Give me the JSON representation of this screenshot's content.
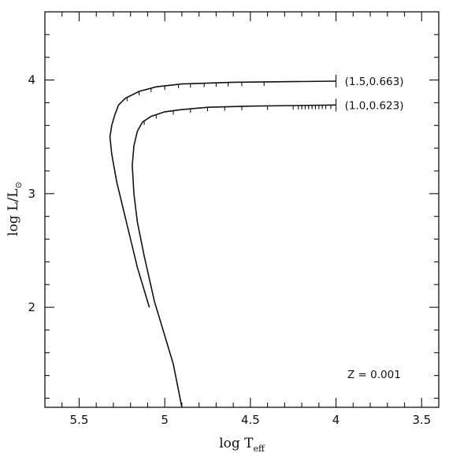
{
  "chart_data": {
    "type": "line",
    "title": "",
    "xlabel": {
      "main": "log T",
      "sub": "eff"
    },
    "ylabel": {
      "main": "log L/L",
      "sub": "⊙"
    },
    "xlim": [
      5.7,
      3.4
    ],
    "ylim": [
      1.12,
      4.6
    ],
    "x_reversed": true,
    "x_ticks": [
      5.5,
      5,
      4.5,
      4,
      3.5
    ],
    "x_tick_labels": [
      "5.5",
      "5",
      "4.5",
      "4",
      "3.5"
    ],
    "y_ticks": [
      2,
      3,
      4
    ],
    "y_tick_labels": [
      "2",
      "3",
      "4"
    ],
    "annotation": "Z = 0.001",
    "series": [
      {
        "name": "(1.5,0.663)",
        "points": [
          [
            4.0,
            3.99
          ],
          [
            4.3,
            3.985
          ],
          [
            4.6,
            3.98
          ],
          [
            4.9,
            3.965
          ],
          [
            5.05,
            3.94
          ],
          [
            5.15,
            3.9
          ],
          [
            5.23,
            3.84
          ],
          [
            5.27,
            3.78
          ],
          [
            5.29,
            3.7
          ],
          [
            5.31,
            3.6
          ],
          [
            5.32,
            3.5
          ],
          [
            5.31,
            3.35
          ],
          [
            5.28,
            3.1
          ],
          [
            5.24,
            2.85
          ],
          [
            5.2,
            2.6
          ],
          [
            5.16,
            2.35
          ],
          [
            5.12,
            2.15
          ],
          [
            5.09,
            2.0
          ]
        ],
        "markers_x": [
          4.42,
          4.55,
          4.63,
          4.7,
          4.77,
          4.85,
          4.92,
          5.0,
          5.08,
          5.15,
          5.22
        ]
      },
      {
        "name": "(1.0,0.623)",
        "points": [
          [
            4.0,
            3.78
          ],
          [
            4.25,
            3.775
          ],
          [
            4.5,
            3.77
          ],
          [
            4.75,
            3.76
          ],
          [
            4.9,
            3.74
          ],
          [
            5.0,
            3.72
          ],
          [
            5.08,
            3.68
          ],
          [
            5.13,
            3.63
          ],
          [
            5.16,
            3.55
          ],
          [
            5.18,
            3.42
          ],
          [
            5.19,
            3.25
          ],
          [
            5.18,
            3.0
          ],
          [
            5.16,
            2.75
          ],
          [
            5.12,
            2.45
          ],
          [
            5.09,
            2.25
          ],
          [
            5.06,
            2.05
          ],
          [
            5.0,
            1.75
          ],
          [
            4.95,
            1.5
          ],
          [
            4.9,
            1.12
          ]
        ],
        "markers_x": [
          4.03,
          4.06,
          4.08,
          4.1,
          4.12,
          4.14,
          4.16,
          4.18,
          4.2,
          4.22,
          4.25,
          4.4,
          4.55,
          4.65,
          4.75,
          4.85,
          4.95,
          5.05,
          5.12
        ]
      }
    ]
  }
}
